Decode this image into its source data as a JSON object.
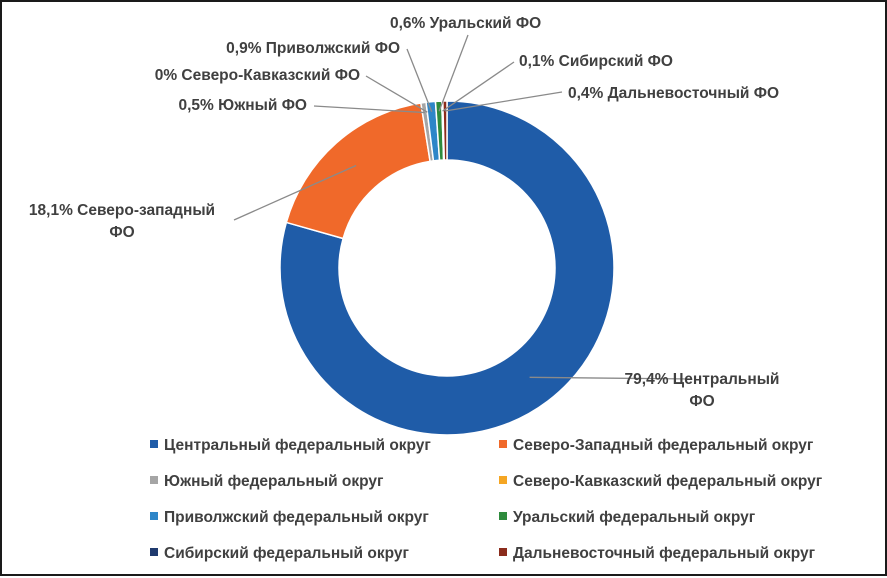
{
  "chart_data": {
    "type": "pie",
    "variant": "donut",
    "title": "",
    "categories": [
      "Центральный федеральный округ",
      "Северо-Западный федеральный округ",
      "Южный федеральный округ",
      "Северо-Кавказский федеральный округ",
      "Приволжский федеральный округ",
      "Уральский федеральный округ",
      "Сибирский федеральный округ",
      "Дальневосточный федеральный округ"
    ],
    "values": [
      79.4,
      18.1,
      0.5,
      0,
      0.9,
      0.6,
      0.1,
      0.4
    ],
    "unit": "%",
    "colors": [
      "#1f5ca8",
      "#f0692a",
      "#a5a5a5",
      "#f5a623",
      "#2e86c8",
      "#2e8b3d",
      "#1f3a6e",
      "#8b2c1c"
    ],
    "data_labels": [
      [
        "79,4% Центральный",
        "ФО"
      ],
      [
        "18,1% Северо-западный",
        "ФО"
      ],
      [
        "0,5% Южный ФО"
      ],
      [
        "0% Северо-Кавказский ФО"
      ],
      [
        "0,9% Приволжский ФО"
      ],
      [
        "0,6% Уральский ФО"
      ],
      [
        "0,1% Сибирский ФО"
      ],
      [
        "0,4% Дальневосточный ФО"
      ]
    ],
    "legend_position": "bottom"
  }
}
